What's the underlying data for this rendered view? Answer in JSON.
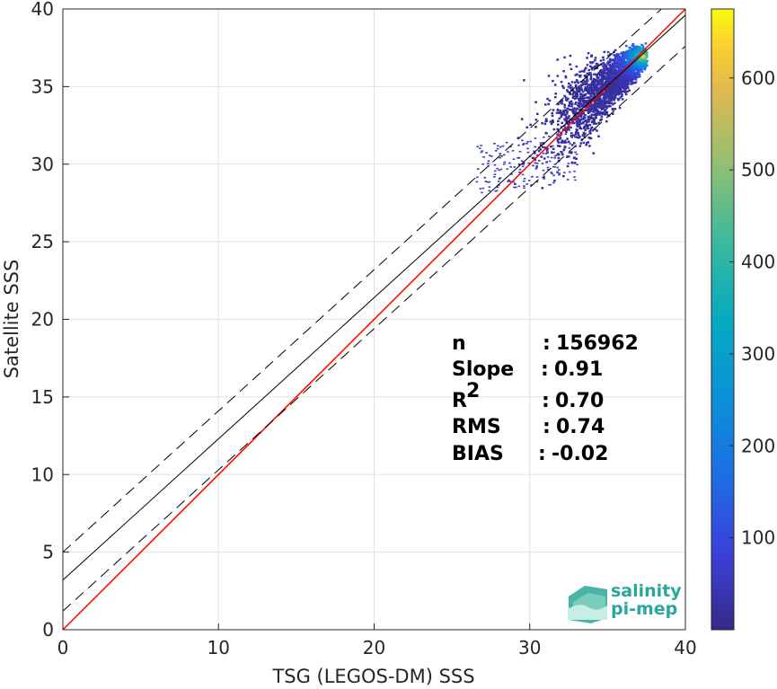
{
  "chart_data": {
    "type": "heatmap",
    "xlabel": "TSG (LEGOS-DM) SSS",
    "ylabel": "Satellite SSS",
    "xlim": [
      0,
      40
    ],
    "ylim": [
      0,
      40
    ],
    "x_ticks": [
      "0",
      "10",
      "20",
      "30",
      "40"
    ],
    "y_ticks": [
      "0",
      "5",
      "10",
      "15",
      "20",
      "25",
      "30",
      "35",
      "40"
    ],
    "grid": true,
    "colorbar": {
      "range": [
        0,
        675
      ],
      "ticks": [
        "100",
        "200",
        "300",
        "400",
        "500",
        "600"
      ],
      "colormap": "parula"
    },
    "lines": [
      {
        "name": "identity",
        "slope": 1.0,
        "intercept": 0.0,
        "color": "#ff0000",
        "style": "solid"
      },
      {
        "name": "regression",
        "slope": 0.91,
        "intercept": 3.2,
        "color": "#000000",
        "style": "solid"
      },
      {
        "name": "regression-upper",
        "slope": 0.91,
        "intercept": 5.0,
        "color": "#000000",
        "style": "dashed"
      },
      {
        "name": "regression-lower",
        "slope": 0.91,
        "intercept": 1.2,
        "color": "#000000",
        "style": "dashed"
      }
    ],
    "density_cloud": {
      "x_range": [
        26.5,
        38.0
      ],
      "y_range": [
        27.5,
        40.0
      ],
      "peak": [
        37.2,
        37.0
      ],
      "peak_count": 640
    },
    "stats": [
      {
        "key": "n",
        "sep": ":",
        "value": "156962"
      },
      {
        "key": "Slope",
        "sep": ":",
        "value": "0.91"
      },
      {
        "key": "R",
        "sup": "2",
        "sep": ":",
        "value": "0.70"
      },
      {
        "key": "RMS",
        "sep": ":",
        "value": "0.74"
      },
      {
        "key": "BIAS",
        "sep": ":",
        "value": "-0.02"
      }
    ]
  },
  "logo": {
    "line1": "salinity",
    "line2": "pi-mep"
  }
}
